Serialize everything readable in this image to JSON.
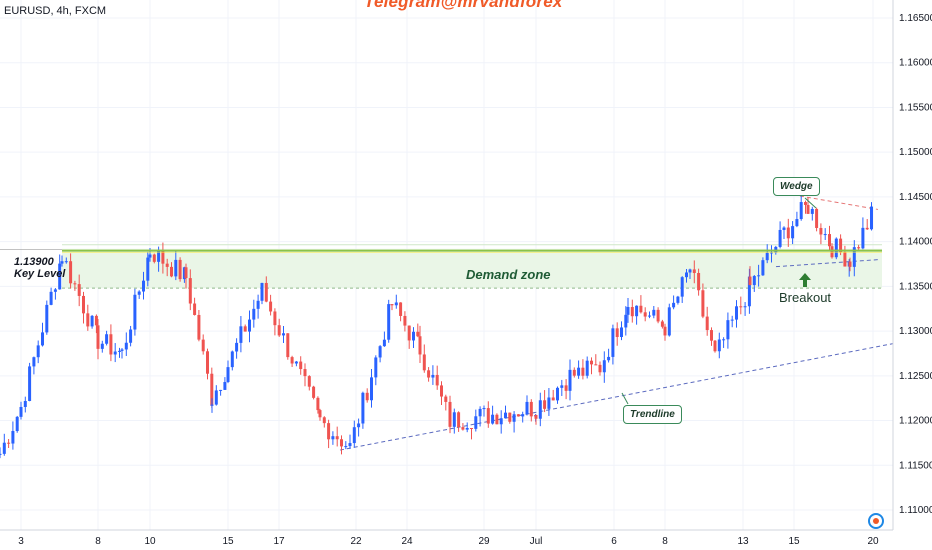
{
  "header": {
    "symbol": "EURUSD, 4h, FXCM",
    "watermark": "Telegram@mrvandforex"
  },
  "annotations": {
    "key_level_price": "1.13900",
    "key_level_label": "Key Level",
    "demand_zone_label": "Demand zone",
    "wedge_label": "Wedge",
    "breakout_label": "Breakout",
    "trendline_label": "Trendline"
  },
  "colors": {
    "up": "#2962ff",
    "down": "#ef5350",
    "zone_fill": "#e8f5e4",
    "key_line": "#8bc34a",
    "trend_line": "#5c6bc0",
    "watermark": "#f05a28"
  },
  "chart_data": {
    "type": "candlestick",
    "title": "",
    "y_axis": {
      "ticks": [
        "1.16500",
        "1.16000",
        "1.15500",
        "1.15000",
        "1.14500",
        "1.14000",
        "1.13500",
        "1.13000",
        "1.12500",
        "1.12000",
        "1.11500",
        "1.11000"
      ],
      "range": [
        1.1075,
        1.1665
      ]
    },
    "x_axis": {
      "ticks": [
        "3",
        "8",
        "10",
        "15",
        "17",
        "22",
        "24",
        "29",
        "Jul",
        "6",
        "8",
        "13",
        "15",
        "20"
      ]
    },
    "key_level": 1.139,
    "demand_zone": [
      1.1348,
      1.1392
    ],
    "trendline": {
      "from": [
        "22",
        1.1167
      ],
      "to": [
        "20",
        1.1285
      ]
    },
    "wedge": {
      "upper": [
        1.1451,
        1.1436
      ],
      "lower": [
        1.1372,
        1.138
      ]
    },
    "price_path": [
      [
        "start",
        1.1163
      ],
      [
        "3",
        1.1215
      ],
      [
        "6",
        1.1385
      ],
      [
        "8",
        1.129
      ],
      [
        "9",
        1.1275
      ],
      [
        "10",
        1.139
      ],
      [
        "12",
        1.136
      ],
      [
        "13",
        1.1225
      ],
      [
        "15",
        1.1262
      ],
      [
        "16",
        1.1345
      ],
      [
        "19",
        1.12
      ],
      [
        "22",
        1.117
      ],
      [
        "23",
        1.133
      ],
      [
        "24",
        1.128
      ],
      [
        "26",
        1.12
      ],
      [
        "29",
        1.1205
      ],
      [
        "Jul",
        1.1215
      ],
      [
        "3",
        1.125
      ],
      [
        "6",
        1.126
      ],
      [
        "7",
        1.1332
      ],
      [
        "8",
        1.1305
      ],
      [
        "9",
        1.137
      ],
      [
        "10",
        1.127
      ],
      [
        "13",
        1.135
      ],
      [
        "14",
        1.141
      ],
      [
        "15",
        1.144
      ],
      [
        "16",
        1.1395
      ],
      [
        "17",
        1.138
      ],
      [
        "20",
        1.1432
      ]
    ]
  }
}
